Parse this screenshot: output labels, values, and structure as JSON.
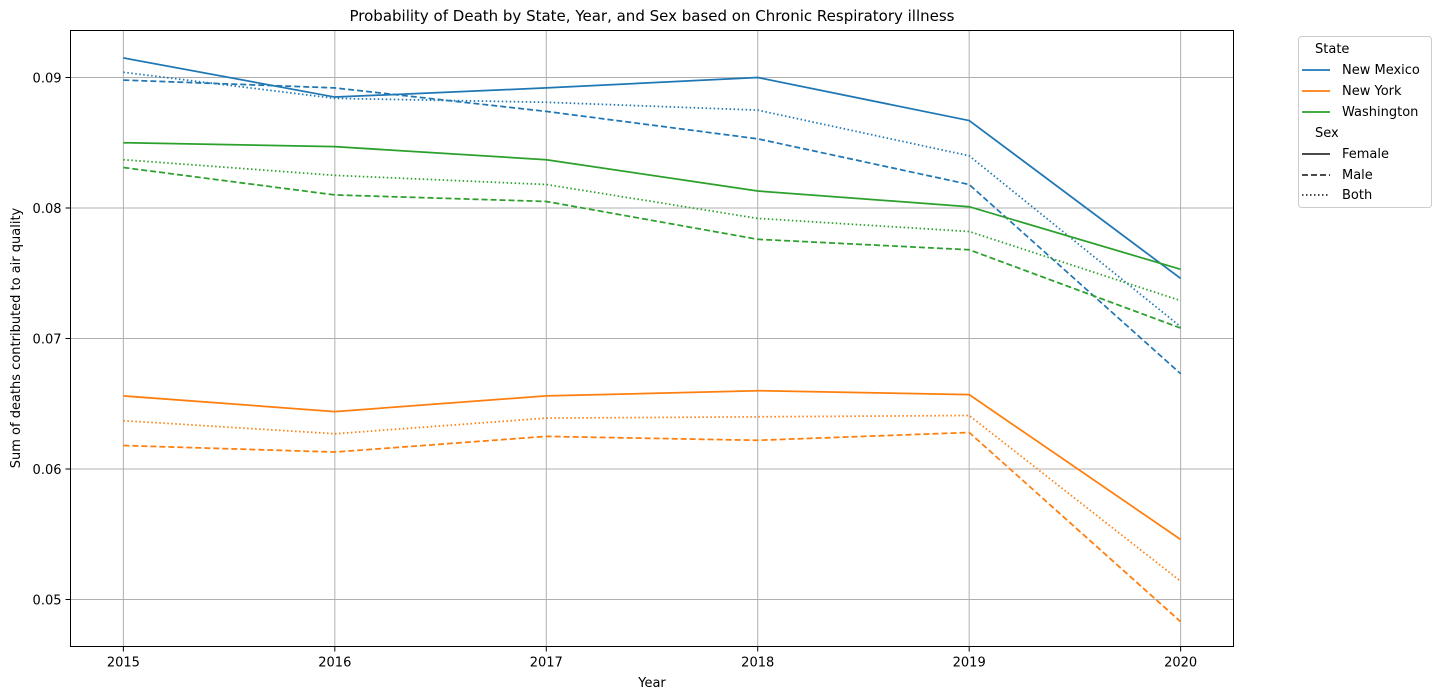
{
  "chart_data": {
    "type": "line",
    "title": "Probability of Death by State, Year, and Sex based on Chronic Respiratory illness",
    "xlabel": "Year",
    "ylabel": "Sum of deaths contributed to air quality",
    "x": [
      2015,
      2016,
      2017,
      2018,
      2019,
      2020
    ],
    "x_ticks": [
      "2015",
      "2016",
      "2017",
      "2018",
      "2019",
      "2020"
    ],
    "xlim": [
      2014.75,
      2020.25
    ],
    "ylim": [
      0.0464,
      0.0936
    ],
    "y_ticks": [
      0.05,
      0.06,
      0.07,
      0.08,
      0.09
    ],
    "y_tick_labels": [
      "0.05",
      "0.06",
      "0.07",
      "0.08",
      "0.09"
    ],
    "grid": true,
    "legend": {
      "placement": "outside-top-right",
      "hue_title": "State",
      "style_title": "Sex",
      "states": [
        {
          "label": "New Mexico",
          "color": "#1f77b4"
        },
        {
          "label": "New York",
          "color": "#ff7f0e"
        },
        {
          "label": "Washington",
          "color": "#2ca02c"
        }
      ],
      "sexes": [
        {
          "label": "Female",
          "style": "solid"
        },
        {
          "label": "Male",
          "style": "dashed"
        },
        {
          "label": "Both",
          "style": "dotted"
        }
      ]
    },
    "series": [
      {
        "state": "New Mexico",
        "sex": "Female",
        "values": [
          0.0915,
          0.0885,
          0.0892,
          0.09,
          0.0867,
          0.0746
        ]
      },
      {
        "state": "New Mexico",
        "sex": "Male",
        "values": [
          0.0898,
          0.0892,
          0.0874,
          0.0853,
          0.0818,
          0.0673
        ]
      },
      {
        "state": "New Mexico",
        "sex": "Both",
        "values": [
          0.0904,
          0.0884,
          0.0881,
          0.0875,
          0.084,
          0.0709
        ]
      },
      {
        "state": "New York",
        "sex": "Female",
        "values": [
          0.0656,
          0.0644,
          0.0656,
          0.066,
          0.0657,
          0.0546
        ]
      },
      {
        "state": "New York",
        "sex": "Male",
        "values": [
          0.0618,
          0.0613,
          0.0625,
          0.0622,
          0.0628,
          0.0483
        ]
      },
      {
        "state": "New York",
        "sex": "Both",
        "values": [
          0.0637,
          0.0627,
          0.0639,
          0.064,
          0.0641,
          0.0514
        ]
      },
      {
        "state": "Washington",
        "sex": "Female",
        "values": [
          0.085,
          0.0847,
          0.0837,
          0.0813,
          0.0801,
          0.0753
        ]
      },
      {
        "state": "Washington",
        "sex": "Male",
        "values": [
          0.0831,
          0.081,
          0.0805,
          0.0776,
          0.0768,
          0.0708
        ]
      },
      {
        "state": "Washington",
        "sex": "Both",
        "values": [
          0.0837,
          0.0825,
          0.0818,
          0.0792,
          0.0782,
          0.0729
        ]
      }
    ]
  }
}
